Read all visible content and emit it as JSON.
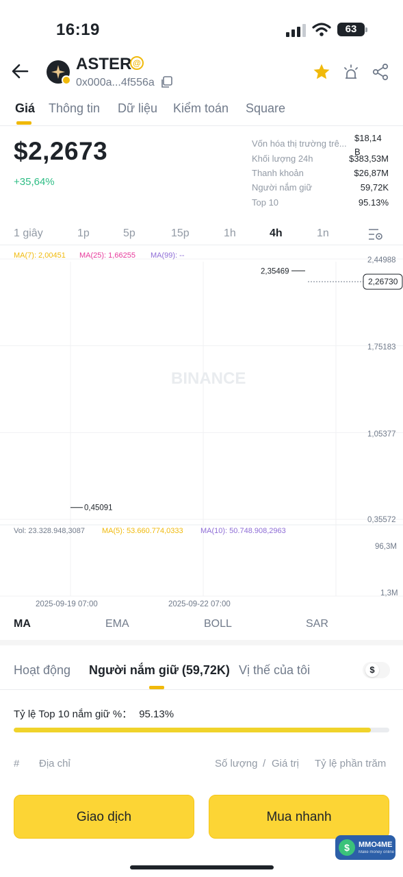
{
  "status": {
    "time": "16:19",
    "battery": "63"
  },
  "token": {
    "name": "ASTER",
    "address": "0x000a...4f556a",
    "at_badge": "@"
  },
  "tabs": [
    {
      "label": "Giá"
    },
    {
      "label": "Thông tin"
    },
    {
      "label": "Dữ liệu"
    },
    {
      "label": "Kiểm toán"
    },
    {
      "label": "Square"
    }
  ],
  "price": {
    "value": "$2,2673",
    "change": "+35,64%"
  },
  "stats": [
    {
      "label": "Vốn hóa thị trường trê...",
      "value": "$18,14 B"
    },
    {
      "label": "Khối lượng 24h",
      "value": "$383,53M"
    },
    {
      "label": "Thanh khoản",
      "value": "$26,87M"
    },
    {
      "label": "Người nắm giữ",
      "value": "59,72K"
    },
    {
      "label": "Top 10",
      "value": "95.13%"
    }
  ],
  "intervals": [
    {
      "label": "1 giây"
    },
    {
      "label": "1p"
    },
    {
      "label": "5p"
    },
    {
      "label": "15p"
    },
    {
      "label": "1h"
    },
    {
      "label": "4h"
    },
    {
      "label": "1n"
    }
  ],
  "active_interval": "4h",
  "chart_data": {
    "type": "candlestick",
    "ma_labels": {
      "ma7": "MA(7): 2,00451",
      "ma25": "MA(25): 1,66255",
      "ma99": "MA(99): --"
    },
    "y_ticks": [
      "2,44988",
      "1,75183",
      "1,05377",
      "0,35572"
    ],
    "y_tick_values": [
      2.44988,
      1.75183,
      1.05377,
      0.35572
    ],
    "current_price_label": "2,26730",
    "current_price": 2.2673,
    "high_label": "2,35469",
    "high_value": 2.35469,
    "low_label": "0,45091",
    "low_value": 0.45091,
    "x_ticks": [
      "2025-09-19 07:00",
      "2025-09-22 07:00"
    ],
    "candles": [],
    "volume": {
      "label_vol": "Vol: 23.328.948,3087",
      "label_ma5": "MA(5): 53.660.774,0333",
      "label_ma10": "MA(10): 50.748.908,2963",
      "y_ticks": [
        "96,3M",
        "1,3M"
      ],
      "bars": []
    },
    "watermark": "BINANCE"
  },
  "indicators": [
    {
      "label": "MA"
    },
    {
      "label": "EMA"
    },
    {
      "label": "BOLL"
    },
    {
      "label": "SAR"
    }
  ],
  "holder_tabs": [
    {
      "label": "Hoạt động"
    },
    {
      "label": "Người nắm giữ (59,72K)"
    },
    {
      "label": "Vị thế của tôi"
    }
  ],
  "currency_symbol": "$",
  "top10": {
    "label": "Tỷ lệ Top 10 nắm giữ %：",
    "value": "95.13%",
    "fraction": 0.9513
  },
  "table_headers": {
    "rank": "#",
    "address": "Địa chỉ",
    "amount": "Số lượng",
    "slash": "/",
    "value": "Giá trị",
    "percent": "Tỷ lệ phần trăm"
  },
  "buttons": {
    "trade": "Giao dịch",
    "quick_buy": "Mua nhanh"
  },
  "brand_watermark": {
    "name": "MMO4ME",
    "sub": "Make money online",
    "symbol": "$"
  },
  "colors": {
    "up": "#2ebd85",
    "down": "#f6465d",
    "accent": "#f0b90b",
    "ma7": "#f0b90b",
    "ma25": "#e6399b",
    "ma99": "#8e6dd6"
  }
}
